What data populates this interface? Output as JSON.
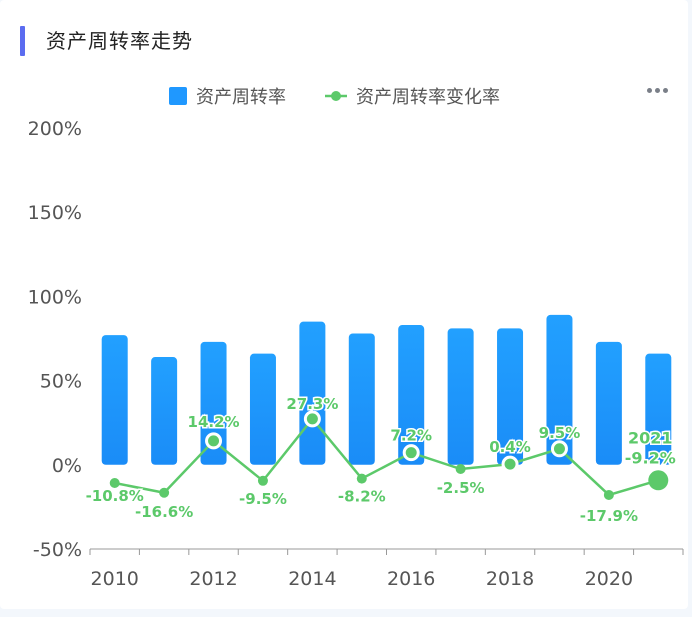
{
  "header": {
    "title": "资产周转率走势"
  },
  "colors": {
    "bar": "#1f98ff",
    "line": "#5cc96a",
    "accent": "#5b6cf0"
  },
  "icons": {
    "menu": "more-dots-icon"
  },
  "chart_data": {
    "type": "bar",
    "categories": [
      "2010",
      "2011",
      "2012",
      "2013",
      "2014",
      "2015",
      "2016",
      "2017",
      "2018",
      "2019",
      "2020",
      "2021"
    ],
    "x_tick_labels": [
      "2010",
      "2012",
      "2014",
      "2016",
      "2018",
      "2020"
    ],
    "y_tick_labels": [
      "-50%",
      "0%",
      "50%",
      "100%",
      "150%",
      "200%"
    ],
    "ylim": [
      -50,
      200
    ],
    "legend_position": "top-center",
    "series": [
      {
        "name": "资产周转率",
        "type": "bar",
        "values": [
          77,
          64,
          73,
          66,
          85,
          78,
          83,
          81,
          81,
          89,
          73,
          66
        ]
      },
      {
        "name": "资产周转率变化率",
        "type": "line",
        "values": [
          -10.8,
          -16.6,
          14.2,
          -9.5,
          27.3,
          -8.2,
          7.2,
          -2.5,
          0.4,
          9.5,
          -17.9,
          -9.2
        ],
        "labels": [
          "-10.8%",
          "-16.6%",
          "14.2%",
          "-9.5%",
          "27.3%",
          "-8.2%",
          "7.2%",
          "-2.5%",
          "0.4%",
          "9.5%",
          "-17.9%",
          "-9.2%"
        ]
      }
    ],
    "highlight": {
      "category": "2021",
      "label_year": "2021",
      "label_value": "-9.2%"
    }
  }
}
